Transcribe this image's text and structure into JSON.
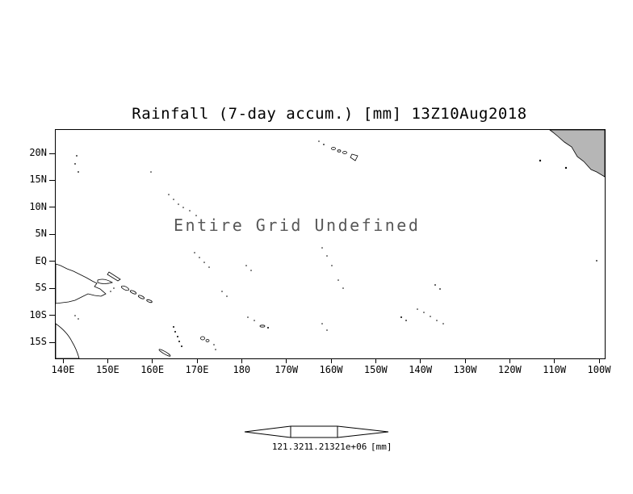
{
  "title": "Rainfall (7-day accum.) [mm] 13Z10Aug2018",
  "annotation": "Entire Grid Undefined",
  "axes": {
    "lat_labels": [
      "20N",
      "15N",
      "10N",
      "5N",
      "EQ",
      "5S",
      "10S",
      "15S"
    ],
    "lon_labels": [
      "140E",
      "150E",
      "160E",
      "170E",
      "180",
      "170W",
      "160W",
      "150W",
      "140W",
      "130W",
      "120W",
      "110W",
      "100W"
    ]
  },
  "colorbar": {
    "labels": [
      "121.321",
      "1.21321e+06"
    ],
    "units": "[mm]"
  },
  "colors": {
    "background": "#ffffff",
    "coastline": "#000000",
    "land_fill": "#b6b6b6",
    "annotation_text": "#585858"
  },
  "chart_data": {
    "type": "heatmap",
    "title": "Rainfall (7-day accum.) [mm] 13Z10Aug2018",
    "annotation": "Entire Grid Undefined",
    "values": "undefined (entire grid undefined, no shaded data plotted)",
    "x_tick_labels": [
      "140E",
      "150E",
      "160E",
      "170E",
      "180",
      "170W",
      "160W",
      "150W",
      "140W",
      "130W",
      "120W",
      "110W",
      "100W"
    ],
    "y_tick_labels": [
      "20N",
      "15N",
      "10N",
      "5N",
      "EQ",
      "5S",
      "10S",
      "15S"
    ],
    "xlim_deg_east": [
      140,
      260
    ],
    "ylim_deg_north": [
      -18,
      22
    ],
    "grid": false,
    "legend_position": "bottom",
    "colorbar_tick_labels": [
      "121.321",
      "1.21321e+06"
    ],
    "colorbar_units": "[mm]",
    "basemap": "Pacific Ocean coastlines; North American coast shaded gray in upper-right corner"
  }
}
